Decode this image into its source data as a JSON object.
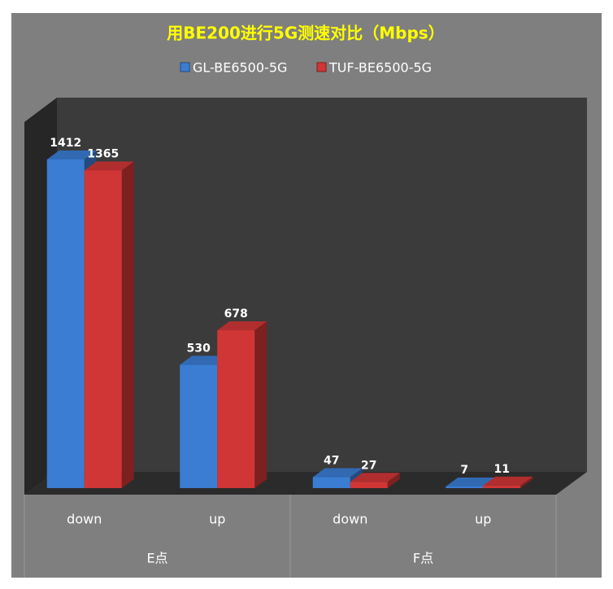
{
  "chart_data": {
    "type": "bar3d",
    "title": "用BE200进行5G测速对比（Mbps）",
    "categories": [
      "down",
      "up",
      "down",
      "up"
    ],
    "groups": [
      "E点",
      "F点"
    ],
    "series": [
      {
        "name": "GL-BE6500-5G",
        "color": "#3a7dd3",
        "values": [
          1412,
          530,
          47,
          7
        ]
      },
      {
        "name": "TUF-BE6500-5G",
        "color": "#d03636",
        "values": [
          1365,
          678,
          27,
          11
        ]
      }
    ],
    "legend": "top"
  }
}
